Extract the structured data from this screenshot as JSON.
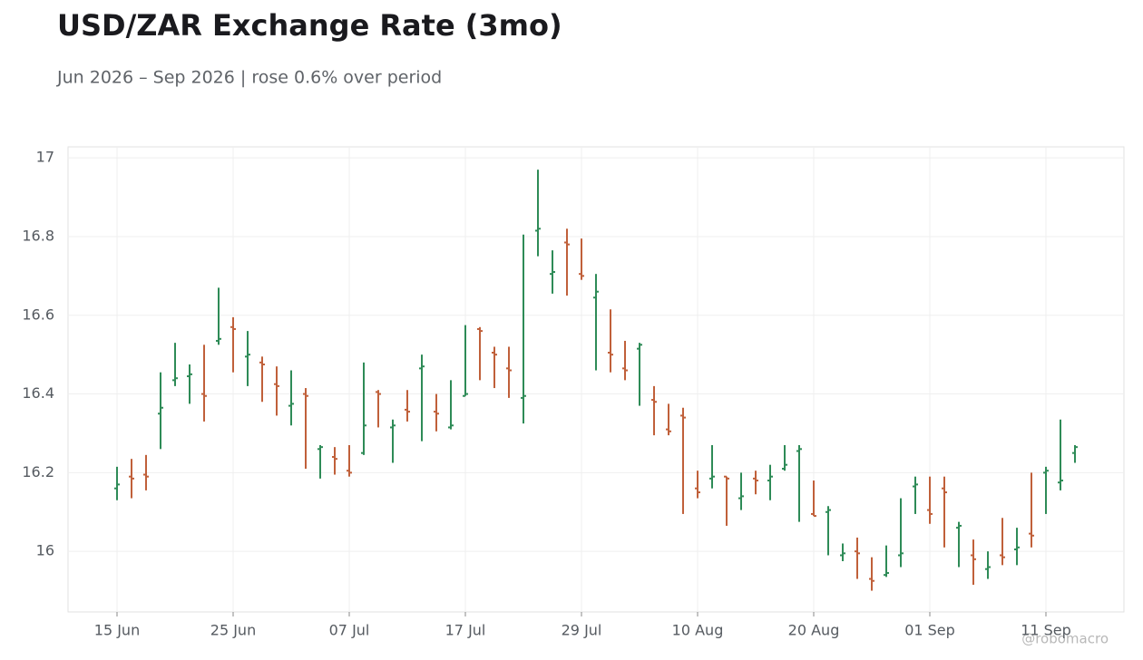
{
  "chart_data": {
    "type": "ohlc",
    "title": "USD/ZAR Exchange Rate (3mo)",
    "subtitle": "Jun 2026 – Sep 2026 | rose 0.6% over period",
    "watermark": "@robomacro",
    "categories": [
      "15 Jun",
      null,
      null,
      null,
      null,
      null,
      null,
      null,
      "25 Jun",
      null,
      null,
      null,
      null,
      null,
      null,
      null,
      "07 Jul",
      null,
      null,
      null,
      null,
      null,
      null,
      null,
      "17 Jul",
      null,
      null,
      null,
      null,
      null,
      null,
      null,
      "29 Jul",
      null,
      null,
      null,
      null,
      null,
      null,
      null,
      "10 Aug",
      null,
      null,
      null,
      null,
      null,
      null,
      null,
      "20 Aug",
      null,
      null,
      null,
      null,
      null,
      null,
      null,
      "01 Sep",
      null,
      null,
      null,
      null,
      null,
      null,
      null,
      "11 Sep",
      null,
      null
    ],
    "open": [
      16.16,
      16.19,
      16.195,
      16.35,
      16.435,
      16.445,
      16.4,
      16.535,
      16.57,
      16.495,
      16.48,
      16.425,
      16.37,
      16.4,
      16.26,
      16.24,
      16.205,
      16.25,
      16.405,
      16.315,
      16.36,
      16.465,
      16.355,
      16.315,
      16.395,
      16.565,
      16.505,
      16.465,
      16.39,
      16.815,
      16.705,
      16.785,
      16.705,
      16.645,
      16.505,
      16.465,
      16.515,
      16.385,
      16.31,
      16.345,
      16.16,
      16.185,
      16.19,
      16.135,
      16.185,
      16.18,
      16.21,
      16.255,
      16.095,
      16.1,
      15.99,
      16.0,
      15.93,
      15.94,
      15.99,
      16.165,
      16.105,
      16.16,
      16.06,
      15.99,
      15.955,
      15.99,
      16.005,
      16.045,
      16.2,
      16.175,
      16.25
    ],
    "high": [
      16.215,
      16.235,
      16.245,
      16.455,
      16.53,
      16.475,
      16.525,
      16.67,
      16.595,
      16.56,
      16.495,
      16.47,
      16.46,
      16.415,
      16.27,
      16.265,
      16.27,
      16.48,
      16.41,
      16.335,
      16.41,
      16.5,
      16.4,
      16.435,
      16.575,
      16.57,
      16.52,
      16.52,
      16.805,
      16.97,
      16.765,
      16.82,
      16.795,
      16.705,
      16.615,
      16.535,
      16.53,
      16.42,
      16.375,
      16.365,
      16.205,
      16.27,
      16.19,
      16.2,
      16.205,
      16.22,
      16.27,
      16.27,
      16.18,
      16.115,
      16.02,
      16.035,
      15.985,
      16.015,
      16.135,
      16.19,
      16.19,
      16.19,
      16.075,
      16.03,
      16.0,
      16.085,
      16.06,
      16.2,
      16.215,
      16.335,
      16.27
    ],
    "low": [
      16.13,
      16.135,
      16.155,
      16.26,
      16.42,
      16.375,
      16.33,
      16.525,
      16.455,
      16.42,
      16.38,
      16.345,
      16.32,
      16.21,
      16.185,
      16.195,
      16.19,
      16.245,
      16.315,
      16.225,
      16.33,
      16.28,
      16.305,
      16.31,
      16.395,
      16.435,
      16.415,
      16.39,
      16.325,
      16.75,
      16.655,
      16.65,
      16.69,
      16.46,
      16.455,
      16.435,
      16.37,
      16.295,
      16.295,
      16.095,
      16.135,
      16.16,
      16.065,
      16.105,
      16.145,
      16.13,
      16.205,
      16.075,
      16.09,
      15.99,
      15.975,
      15.93,
      15.9,
      15.935,
      15.96,
      16.095,
      16.07,
      16.01,
      15.96,
      15.915,
      15.93,
      15.965,
      15.965,
      16.01,
      16.095,
      16.155,
      16.225
    ],
    "close": [
      16.17,
      16.185,
      16.19,
      16.365,
      16.44,
      16.45,
      16.395,
      16.54,
      16.565,
      16.5,
      16.475,
      16.42,
      16.375,
      16.395,
      16.265,
      16.235,
      16.2,
      16.32,
      16.4,
      16.32,
      16.355,
      16.47,
      16.35,
      16.32,
      16.4,
      16.56,
      16.5,
      16.46,
      16.395,
      16.82,
      16.71,
      16.78,
      16.7,
      16.66,
      16.5,
      16.46,
      16.525,
      16.38,
      16.305,
      16.34,
      16.15,
      16.19,
      16.185,
      16.14,
      16.18,
      16.19,
      16.22,
      16.26,
      16.09,
      16.105,
      15.995,
      15.995,
      15.925,
      15.945,
      15.995,
      16.17,
      16.095,
      16.15,
      16.065,
      15.98,
      15.96,
      15.985,
      16.01,
      16.04,
      16.205,
      16.18,
      16.265
    ],
    "up_color": "#2e8b57",
    "down_color": "#c0603a",
    "ylim": [
      15.846,
      17.028
    ],
    "yticks": [
      16,
      16.2,
      16.4,
      16.6,
      16.8,
      17
    ],
    "grid": true
  }
}
